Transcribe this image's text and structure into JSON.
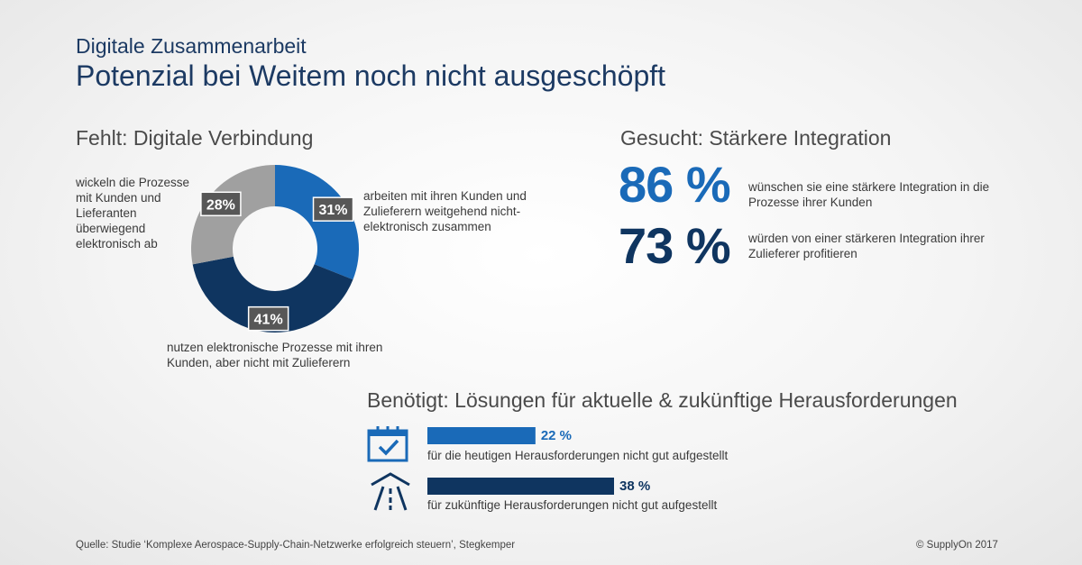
{
  "header": {
    "subtitle": "Digitale Zusammenarbeit",
    "title": "Potenzial bei Weitem noch nicht ausgeschöpft"
  },
  "left": {
    "heading": "Fehlt: Digitale Verbindung",
    "label_28": "wickeln die Prozesse mit Kunden und Lieferanten überwiegend elektronisch ab",
    "label_31": "arbeiten mit ihren Kunden und Zulieferern weitgehend nicht-elektronisch zusammen",
    "label_41": "nutzen elektronische Prozesse mit ihren Kunden, aber nicht mit Zulieferern"
  },
  "right": {
    "heading": "Gesucht: Stärkere Integration",
    "stat1_value": "86 %",
    "stat1_text": "wünschen sie eine stärkere Integration in die Prozesse ihrer Kunden",
    "stat2_value": "73 %",
    "stat2_text": "würden von einer stärkeren Integration ihrer Zulieferer profitieren"
  },
  "bottom": {
    "heading": "Benötigt: Lösungen für aktuelle & zukünftige Herausforderungen",
    "bar1_value_label": "22 %",
    "bar1_text": "für die heutigen Herausforderungen nicht gut aufgestellt",
    "bar1_icon": "calendar-check-icon",
    "bar2_value_label": "38 %",
    "bar2_text": "für zukünftige Herausforderungen nicht gut aufgestellt",
    "bar2_icon": "road-icon"
  },
  "footer": {
    "source": "Quelle: Studie ‘Komplexe Aerospace-Supply-Chain-Netzwerke erfolgreich steuern’, Stegkemper",
    "copyright": "© SupplyOn 2017"
  },
  "colors": {
    "navy": "#0f3560",
    "blue": "#1a6ab8",
    "gray": "#a0a0a0",
    "title": "#1c3a63"
  },
  "chart_data": [
    {
      "type": "pie",
      "categories": [
        "31%",
        "41%",
        "28%"
      ],
      "values": [
        31,
        41,
        28
      ],
      "value_labels": [
        "31%",
        "41%",
        "28%"
      ],
      "colors": [
        "#1a6ab8",
        "#0f3560",
        "#a0a0a0"
      ]
    },
    {
      "type": "bar",
      "categories": [
        "für die heutigen Herausforderungen nicht gut aufgestellt",
        "für zukünftige Herausforderungen nicht gut aufgestellt"
      ],
      "values": [
        22,
        38
      ],
      "value_labels": [
        "22 %",
        "38 %"
      ],
      "colors": [
        "#1a6ab8",
        "#0f3560"
      ],
      "ylim": [
        0,
        100
      ]
    }
  ]
}
